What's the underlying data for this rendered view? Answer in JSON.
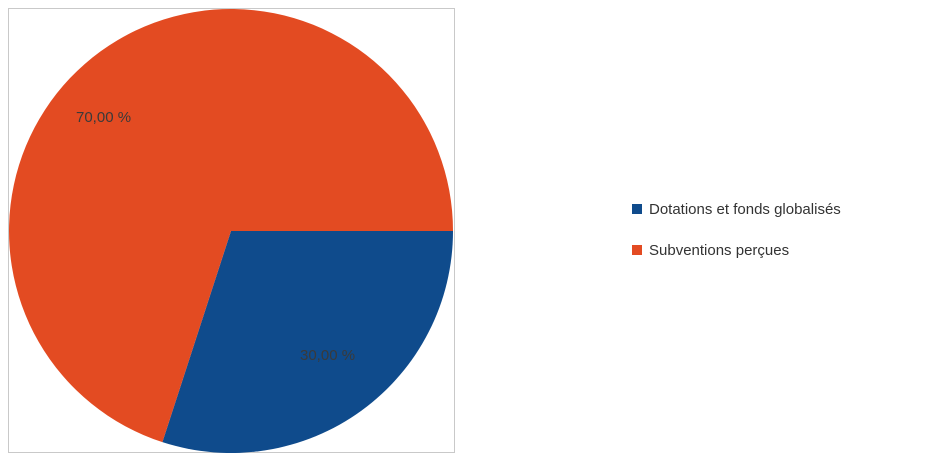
{
  "chart_data": {
    "type": "pie",
    "title": "",
    "slices": [
      {
        "label": "Dotations et fonds globalisés",
        "value": 30.0,
        "value_label": "30,00 %",
        "color": "#0f4b8c"
      },
      {
        "label": "Subventions perçues",
        "value": 70.0,
        "value_label": "70,00 %",
        "color": "#e34b22"
      }
    ],
    "legend_position": "right",
    "start_angle_deg": 0,
    "direction": "clockwise"
  }
}
